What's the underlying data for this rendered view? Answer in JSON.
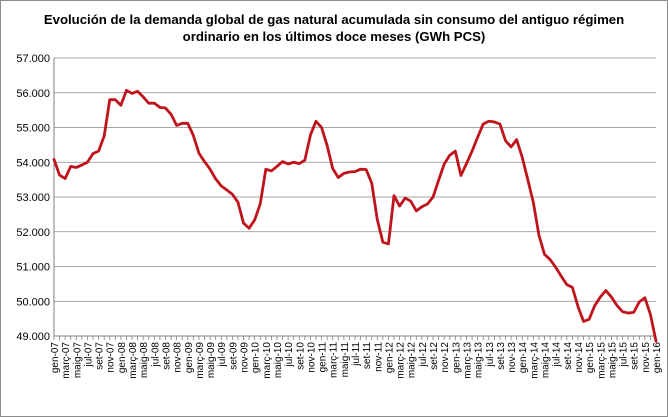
{
  "chart_data": {
    "type": "line",
    "title_line1": "Evolución de la demanda global de gas natural acumulada sin consumo del antiguo régimen",
    "title_line2": "ordinario en los últimos doce meses (GWh PCS)",
    "xlabel": "",
    "ylabel": "",
    "ylim": [
      49000,
      57000
    ],
    "y_ticks": [
      "57.000",
      "56.000",
      "55.000",
      "54.000",
      "53.000",
      "52.000",
      "51.000",
      "50.000",
      "49.000"
    ],
    "x_labels": [
      "gen-07",
      "març-07",
      "maig-07",
      "jul-07",
      "set-07",
      "nov-07",
      "gen-08",
      "març-08",
      "maig-08",
      "jul-08",
      "set-08",
      "nov-08",
      "gen-09",
      "març-09",
      "maig-09",
      "jul-09",
      "set-09",
      "nov-09",
      "gen-10",
      "març-10",
      "maig-10",
      "jul-10",
      "set-10",
      "nov-10",
      "gen-11",
      "març-11",
      "maig-11",
      "jul-11",
      "set-11",
      "nov-11",
      "gen-12",
      "març-12",
      "maig-12",
      "jul-12",
      "set-12",
      "nov-12",
      "gen-13",
      "març-13",
      "maig-13",
      "jul-13",
      "set-13",
      "nov-13",
      "gen-14",
      "març-14",
      "maig-14",
      "jul-14",
      "set-14",
      "nov-14",
      "gen-15",
      "març-15",
      "maig-15",
      "jul-15",
      "set-15",
      "nov-15",
      "gen-16"
    ],
    "grid": true,
    "legend": "none",
    "line_color": "#c0141c",
    "series": [
      {
        "values": [
          54080,
          53630,
          53530,
          53880,
          53850,
          53920,
          54000,
          54250,
          54320,
          54750,
          55800,
          55800,
          55640,
          56070,
          55980,
          56040,
          55880,
          55700,
          55700,
          55580,
          55560,
          55380,
          55060,
          55120,
          55120,
          54770,
          54260,
          54020,
          53800,
          53520,
          53320,
          53200,
          53080,
          52850,
          52250,
          52100,
          52340,
          52800,
          53800,
          53750,
          53880,
          54020,
          53950,
          54000,
          53960,
          54060,
          54780,
          55180,
          55000,
          54480,
          53820,
          53560,
          53680,
          53720,
          53730,
          53800,
          53790,
          53400,
          52350,
          51700,
          51650,
          53040,
          52740,
          52970,
          52880,
          52600,
          52720,
          52800,
          53000,
          53480,
          53950,
          54200,
          54320,
          53620,
          53960,
          54320,
          54720,
          55100,
          55180,
          55160,
          55100,
          54620,
          54440,
          54650,
          54140,
          53500,
          52840,
          51900,
          51350,
          51200,
          50980,
          50720,
          50480,
          50400,
          49850,
          49420,
          49480,
          49870,
          50120,
          50310,
          50120,
          49880,
          49700,
          49660,
          49680,
          49980,
          50100,
          49620,
          48850
        ]
      }
    ]
  }
}
